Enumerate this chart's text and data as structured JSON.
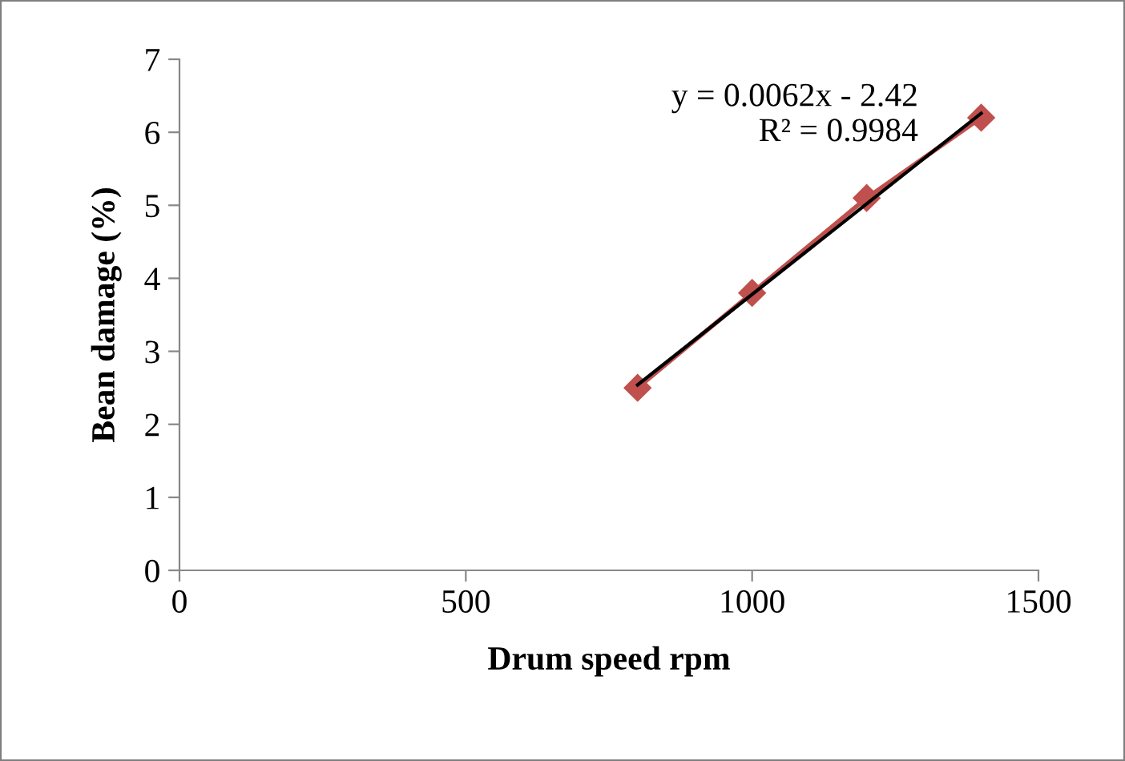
{
  "chart_data": {
    "type": "line",
    "xlabel": "Drum speed rpm",
    "ylabel": "Bean damage (%)",
    "xlim": [
      0,
      1500
    ],
    "xticks": [
      0,
      500,
      1000,
      1500
    ],
    "ylim": [
      0,
      7
    ],
    "yticks": [
      0,
      1,
      2,
      3,
      4,
      5,
      6,
      7
    ],
    "grid": false,
    "series": [
      {
        "color": "#c0504d",
        "x": [
          800,
          1000,
          1200,
          1400
        ],
        "values": [
          2.5,
          3.8,
          5.1,
          6.2
        ],
        "marker": "diamond"
      },
      {
        "color": "#000000",
        "x": [
          800,
          1400
        ],
        "values": [
          2.54,
          6.26
        ],
        "marker": "none"
      }
    ],
    "annotations": [
      "y = 0.0062x - 2.42\nR² = 0.9984"
    ]
  }
}
